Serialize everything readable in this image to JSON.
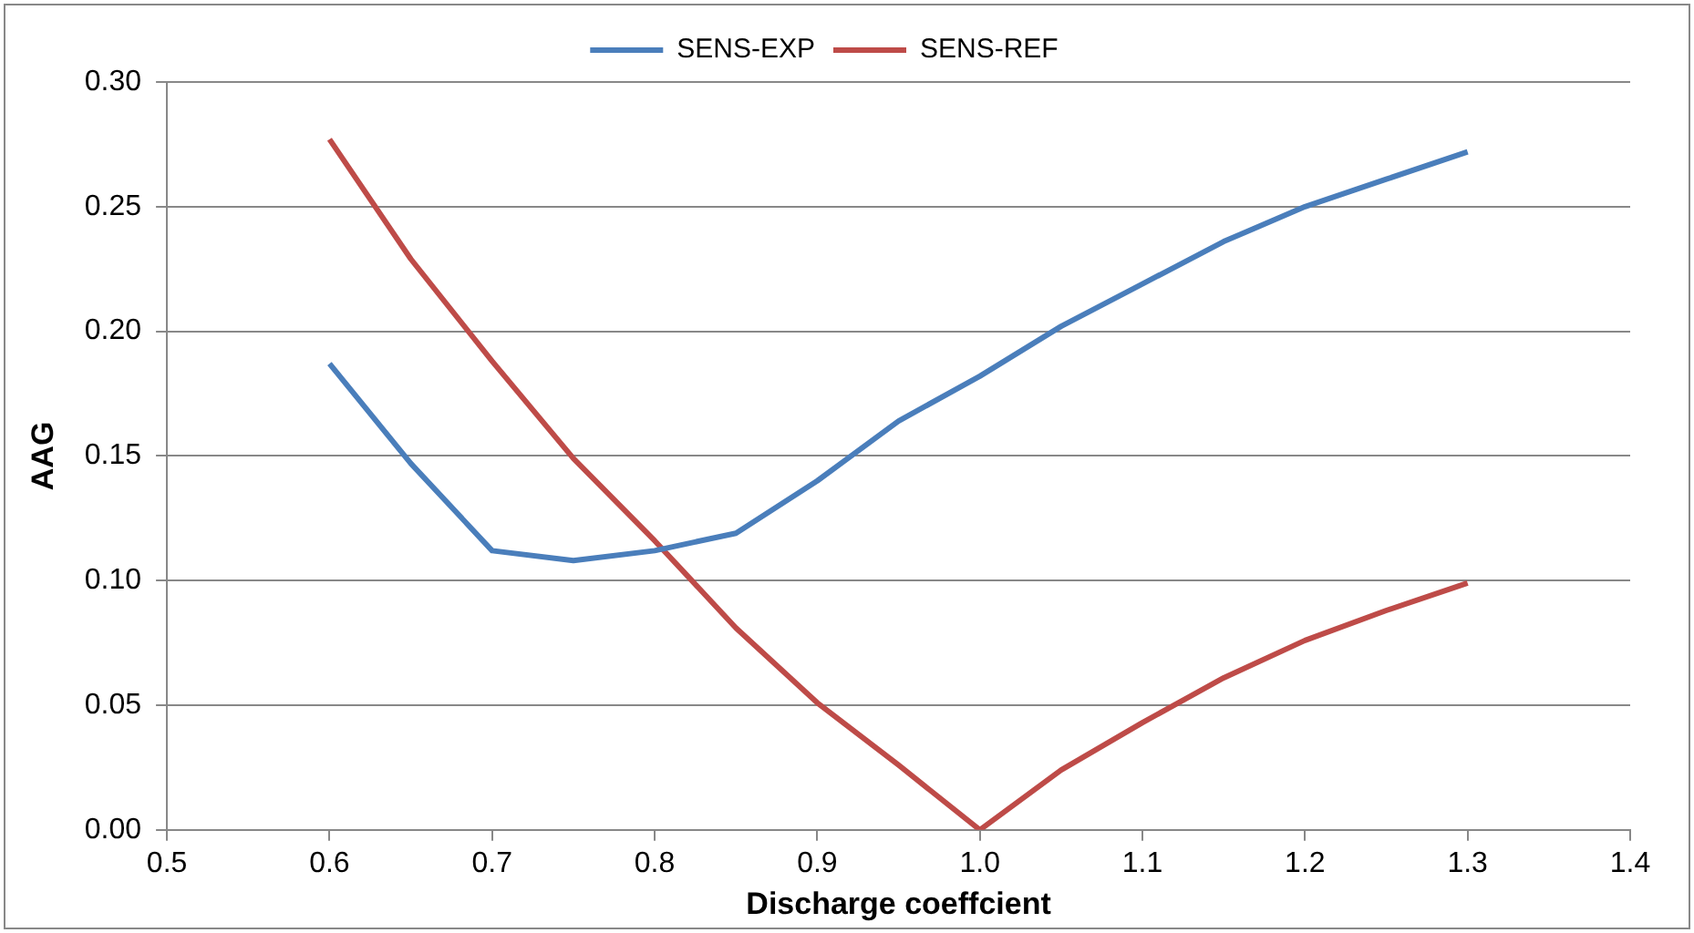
{
  "chart_data": {
    "type": "line",
    "xlabel": "Discharge coeffcient",
    "ylabel": "AAG",
    "x": [
      0.6,
      0.65,
      0.7,
      0.75,
      0.8,
      0.85,
      0.9,
      0.95,
      1.0,
      1.05,
      1.1,
      1.15,
      1.2,
      1.25,
      1.3
    ],
    "series": [
      {
        "name": "SENS-EXP",
        "color": "#4a7ebb",
        "values": [
          0.187,
          0.147,
          0.112,
          0.108,
          0.112,
          0.119,
          0.14,
          0.164,
          0.182,
          0.202,
          0.219,
          0.236,
          0.25,
          0.261,
          0.272
        ]
      },
      {
        "name": "SENS-REF",
        "color": "#be4b48",
        "values": [
          0.277,
          0.229,
          0.188,
          0.149,
          0.116,
          0.081,
          0.051,
          0.026,
          0.0,
          0.024,
          0.043,
          0.061,
          0.076,
          0.088,
          0.099
        ]
      }
    ],
    "xlim": [
      0.5,
      1.4
    ],
    "xticks": [
      {
        "value": 0.5,
        "label": "0.5"
      },
      {
        "value": 0.6,
        "label": "0.6"
      },
      {
        "value": 0.7,
        "label": "0.7"
      },
      {
        "value": 0.8,
        "label": "0.8"
      },
      {
        "value": 0.9,
        "label": "0.9"
      },
      {
        "value": 1.0,
        "label": "1.0"
      },
      {
        "value": 1.1,
        "label": "1.1"
      },
      {
        "value": 1.2,
        "label": "1.2"
      },
      {
        "value": 1.3,
        "label": "1.3"
      },
      {
        "value": 1.4,
        "label": "1.4"
      }
    ],
    "ylim": [
      0,
      0.3
    ],
    "yticks": [
      {
        "value": 0,
        "label": "0.00"
      },
      {
        "value": 0.05,
        "label": "0.05"
      },
      {
        "value": 0.1,
        "label": "0.10"
      },
      {
        "value": 0.15,
        "label": "0.15"
      },
      {
        "value": 0.2,
        "label": "0.20"
      },
      {
        "value": 0.25,
        "label": "0.25"
      },
      {
        "value": 0.3,
        "label": "0.30"
      }
    ],
    "grid": "y",
    "legend": "top",
    "marker": "none",
    "line_style": "solid"
  }
}
